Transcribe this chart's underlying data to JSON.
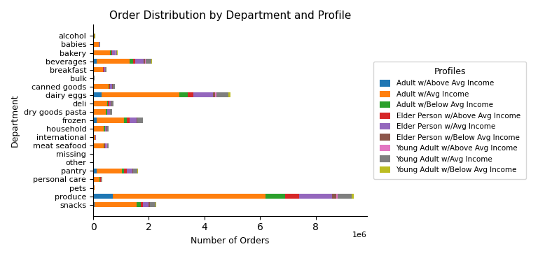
{
  "title": "Order Distribution by Department and Profile",
  "xlabel": "Number of Orders",
  "ylabel": "Department",
  "legend_title": "Profiles",
  "profiles": [
    "Adult w/Above Avg Income",
    "Adult w/Avg Income",
    "Adult w/Below Avg Income",
    "Elder Person w/Above Avg Income",
    "Elder Person w/Avg Income",
    "Elder Person w/Below Avg Income",
    "Young Adult w/Above Avg Income",
    "Young Adult w/Avg Income",
    "Young Adult w/Below Avg Income"
  ],
  "colors": [
    "#1f77b4",
    "#ff7f0e",
    "#2ca02c",
    "#d62728",
    "#9467bd",
    "#8c564b",
    "#e377c2",
    "#7f7f7f",
    "#bcbd22"
  ],
  "departments": [
    "snacks",
    "produce",
    "pets",
    "personal care",
    "pantry",
    "other",
    "missing",
    "meat seafood",
    "international",
    "household",
    "frozen",
    "dry goods pasta",
    "deli",
    "dairy eggs",
    "canned goods",
    "bulk",
    "breakfast",
    "beverages",
    "bakery",
    "babies",
    "alcohol"
  ],
  "data": {
    "snacks": [
      50000,
      1500000,
      150000,
      100000,
      200000,
      30000,
      20000,
      180000,
      30000
    ],
    "produce": [
      700000,
      5500000,
      700000,
      500000,
      1200000,
      150000,
      50000,
      500000,
      80000
    ],
    "pets": [
      3000,
      40000,
      3000,
      4000,
      4000,
      1500,
      800,
      3000,
      800
    ],
    "personal care": [
      8000,
      230000,
      18000,
      8000,
      25000,
      4000,
      3000,
      18000,
      3000
    ],
    "pantry": [
      120000,
      900000,
      100000,
      80000,
      200000,
      30000,
      15000,
      150000,
      20000
    ],
    "other": [
      1500,
      15000,
      1500,
      1500,
      2000,
      700,
      400,
      1500,
      400
    ],
    "missing": [
      1500,
      15000,
      1500,
      1500,
      2000,
      700,
      400,
      1500,
      400
    ],
    "meat seafood": [
      20000,
      350000,
      30000,
      20000,
      60000,
      8000,
      5000,
      50000,
      8000
    ],
    "international": [
      6000,
      70000,
      6000,
      5000,
      8000,
      2500,
      1200,
      6000,
      1200
    ],
    "household": [
      18000,
      370000,
      28000,
      18000,
      55000,
      7000,
      4500,
      45000,
      7000
    ],
    "frozen": [
      120000,
      1000000,
      100000,
      80000,
      250000,
      30000,
      15000,
      180000,
      25000
    ],
    "dry goods pasta": [
      15000,
      450000,
      30000,
      20000,
      80000,
      10000,
      5000,
      60000,
      10000
    ],
    "deli": [
      20000,
      480000,
      38000,
      28000,
      75000,
      11000,
      7000,
      65000,
      11000
    ],
    "dairy eggs": [
      300000,
      2800000,
      300000,
      200000,
      700000,
      80000,
      40000,
      450000,
      60000
    ],
    "canned goods": [
      20000,
      530000,
      38000,
      28000,
      75000,
      11000,
      7000,
      65000,
      11000
    ],
    "bulk": [
      2000,
      25000,
      2000,
      1500,
      3500,
      800,
      400,
      2000,
      400
    ],
    "breakfast": [
      12000,
      330000,
      22000,
      12000,
      45000,
      7000,
      4000,
      35000,
      7000
    ],
    "beverages": [
      120000,
      1200000,
      120000,
      80000,
      300000,
      40000,
      20000,
      200000,
      30000
    ],
    "bakery": [
      28000,
      580000,
      45000,
      28000,
      90000,
      13000,
      9000,
      75000,
      11000
    ],
    "babies": [
      8000,
      185000,
      13000,
      6000,
      18000,
      4000,
      2500,
      13000,
      2500
    ],
    "alcohol": [
      4000,
      55000,
      4000,
      4000,
      6000,
      1500,
      800,
      4000,
      800
    ]
  }
}
